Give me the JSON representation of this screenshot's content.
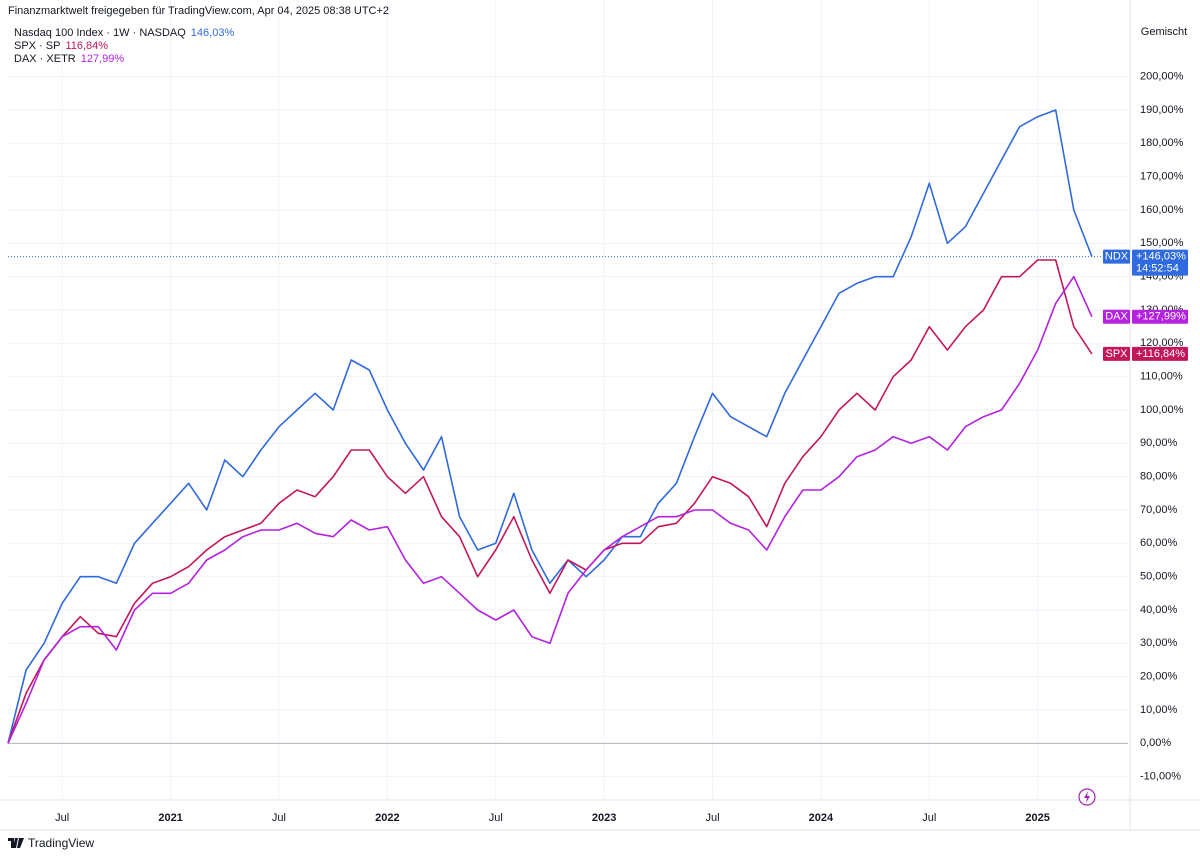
{
  "header": "Finanzmarktwelt freigegeben für TradingView.com, Apr 04, 2025 08:38 UTC+2",
  "scale_mode": "Gemischt",
  "brand": "TradingView",
  "chart_data": {
    "type": "line",
    "x": [
      "2020-04",
      "2020-05",
      "2020-06",
      "2020-07",
      "2020-08",
      "2020-09",
      "2020-10",
      "2020-11",
      "2020-12",
      "2021-01",
      "2021-02",
      "2021-03",
      "2021-04",
      "2021-05",
      "2021-06",
      "2021-07",
      "2021-08",
      "2021-09",
      "2021-10",
      "2021-11",
      "2021-12",
      "2022-01",
      "2022-02",
      "2022-03",
      "2022-04",
      "2022-05",
      "2022-06",
      "2022-07",
      "2022-08",
      "2022-09",
      "2022-10",
      "2022-11",
      "2022-12",
      "2023-01",
      "2023-02",
      "2023-03",
      "2023-04",
      "2023-05",
      "2023-06",
      "2023-07",
      "2023-08",
      "2023-09",
      "2023-10",
      "2023-11",
      "2023-12",
      "2024-01",
      "2024-02",
      "2024-03",
      "2024-04",
      "2024-05",
      "2024-06",
      "2024-07",
      "2024-08",
      "2024-09",
      "2024-10",
      "2024-11",
      "2024-12",
      "2025-01",
      "2025-02",
      "2025-03",
      "2025-04"
    ],
    "series": [
      {
        "name": "Nasdaq 100 Index · 1W · NASDAQ",
        "short_name": "NDX",
        "legend_value": "146,03%",
        "badge": "+146,03%",
        "countdown": "14:52:54",
        "color": "#2f6bde",
        "values": [
          0,
          22,
          30,
          42,
          50,
          50,
          48,
          60,
          66,
          72,
          78,
          70,
          85,
          80,
          88,
          95,
          100,
          105,
          100,
          115,
          112,
          100,
          90,
          82,
          92,
          68,
          58,
          60,
          75,
          58,
          48,
          55,
          50,
          55,
          62,
          62,
          72,
          78,
          92,
          105,
          98,
          95,
          92,
          105,
          115,
          125,
          135,
          138,
          140,
          140,
          152,
          168,
          150,
          155,
          165,
          175,
          185,
          188,
          190,
          160,
          146.03
        ]
      },
      {
        "name": "SPX · SP",
        "short_name": "SPX",
        "legend_value": "116,84%",
        "badge": "+116,84%",
        "color": "#c2185b",
        "values": [
          0,
          15,
          25,
          32,
          38,
          33,
          32,
          42,
          48,
          50,
          53,
          58,
          62,
          64,
          66,
          72,
          76,
          74,
          80,
          88,
          88,
          80,
          75,
          80,
          68,
          62,
          50,
          58,
          68,
          55,
          45,
          55,
          52,
          58,
          60,
          60,
          65,
          66,
          72,
          80,
          78,
          74,
          65,
          78,
          86,
          92,
          100,
          105,
          100,
          110,
          115,
          125,
          118,
          125,
          130,
          140,
          140,
          145,
          145,
          125,
          116.84
        ]
      },
      {
        "name": "DAX · XETR",
        "short_name": "DAX",
        "legend_value": "127,99%",
        "badge": "+127,99%",
        "color": "#b422e0",
        "values": [
          0,
          12,
          25,
          32,
          35,
          35,
          28,
          40,
          45,
          45,
          48,
          55,
          58,
          62,
          64,
          64,
          66,
          63,
          62,
          67,
          64,
          65,
          55,
          48,
          50,
          45,
          40,
          37,
          40,
          32,
          30,
          45,
          52,
          58,
          62,
          65,
          68,
          68,
          70,
          70,
          66,
          64,
          58,
          68,
          76,
          76,
          80,
          86,
          88,
          92,
          90,
          92,
          88,
          95,
          98,
          100,
          108,
          118,
          132,
          140,
          127.99
        ]
      }
    ],
    "xlim": [
      "2020-04",
      "2025-06"
    ],
    "xticks": [
      {
        "value": "2020-07",
        "label": "Jul"
      },
      {
        "value": "2021-01",
        "label": "2021"
      },
      {
        "value": "2021-07",
        "label": "Jul"
      },
      {
        "value": "2022-01",
        "label": "2022"
      },
      {
        "value": "2022-07",
        "label": "Jul"
      },
      {
        "value": "2023-01",
        "label": "2023"
      },
      {
        "value": "2023-07",
        "label": "Jul"
      },
      {
        "value": "2024-01",
        "label": "2024"
      },
      {
        "value": "2024-07",
        "label": "Jul"
      },
      {
        "value": "2025-01",
        "label": "2025"
      }
    ],
    "ylim": [
      -17,
      217
    ],
    "yticks": [
      {
        "value": -10,
        "label": "-10,00%"
      },
      {
        "value": 0,
        "label": "0,00%"
      },
      {
        "value": 10,
        "label": "10,00%"
      },
      {
        "value": 20,
        "label": "20,00%"
      },
      {
        "value": 30,
        "label": "30,00%"
      },
      {
        "value": 40,
        "label": "40,00%"
      },
      {
        "value": 50,
        "label": "50,00%"
      },
      {
        "value": 60,
        "label": "60,00%"
      },
      {
        "value": 70,
        "label": "70,00%"
      },
      {
        "value": 80,
        "label": "80,00%"
      },
      {
        "value": 90,
        "label": "90,00%"
      },
      {
        "value": 100,
        "label": "100,00%"
      },
      {
        "value": 110,
        "label": "110,00%"
      },
      {
        "value": 120,
        "label": "120,00%"
      },
      {
        "value": 130,
        "label": "130,00%"
      },
      {
        "value": 140,
        "label": "140,00%"
      },
      {
        "value": 150,
        "label": "150,00%"
      },
      {
        "value": 160,
        "label": "160,00%"
      },
      {
        "value": 170,
        "label": "170,00%"
      },
      {
        "value": 180,
        "label": "180,00%"
      },
      {
        "value": 190,
        "label": "190,00%"
      },
      {
        "value": 200,
        "label": "200,00%"
      }
    ],
    "grid": true
  }
}
